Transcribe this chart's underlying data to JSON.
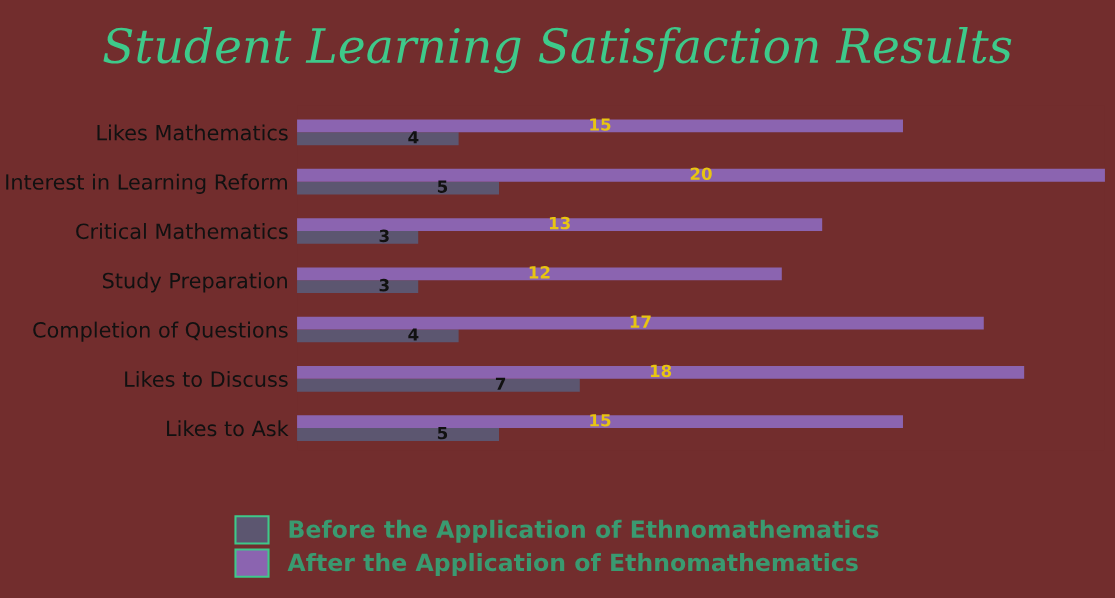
{
  "chart_data": {
    "type": "bar",
    "orientation": "horizontal",
    "title": "Student Learning Satisfaction Results",
    "categories": [
      "Likes Mathematics",
      "Interest in Learning Reform",
      "Critical Mathematics",
      "Study Preparation",
      "Completion of Questions",
      "Likes to Discuss",
      "Likes to Ask"
    ],
    "series": [
      {
        "name": "Before the Application of Ethnomathematics",
        "color": "#5c5670",
        "values": [
          4,
          5,
          3,
          3,
          4,
          7,
          5
        ]
      },
      {
        "name": "After the Application of Ethnomathematics",
        "color": "#8b64b0",
        "values": [
          15,
          20,
          13,
          12,
          17,
          18,
          15
        ]
      }
    ],
    "data_labels": true,
    "legend": "bottom",
    "grid": false
  }
}
